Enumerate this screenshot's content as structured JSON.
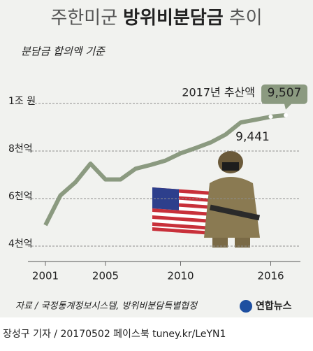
{
  "chart_data": {
    "type": "line",
    "title_parts": [
      "주한미군",
      "방위비분담금",
      "추이"
    ],
    "subtitle": "분담금 합의액 기준",
    "x": [
      2001,
      2002,
      2003,
      2004,
      2005,
      2006,
      2007,
      2008,
      2009,
      2010,
      2011,
      2012,
      2013,
      2014,
      2015,
      2016,
      2017
    ],
    "series": [
      {
        "color": "#8b9a80",
        "values": [
          4882,
          6132,
          6686,
          7469,
          6804,
          6804,
          7255,
          7415,
          7600,
          7904,
          8125,
          8361,
          8695,
          9200,
          9320,
          9441,
          9507
        ],
        "value_labels": [
          null,
          null,
          null,
          null,
          null,
          null,
          null,
          null,
          null,
          null,
          null,
          null,
          null,
          null,
          null,
          "9,441",
          "9,507"
        ]
      }
    ],
    "annotations": [
      {
        "text": "2017년 추산액",
        "x": 2017
      }
    ],
    "xlim": [
      2001,
      2017
    ],
    "xticks": [
      2001,
      2005,
      2010,
      2016
    ],
    "ylim": [
      4000,
      10000
    ],
    "yticks": [
      {
        "value": 4000,
        "label": "4천억"
      },
      {
        "value": 6000,
        "label": "6천억"
      },
      {
        "value": 8000,
        "label": "8천억"
      },
      {
        "value": 10000,
        "label": "1조 원"
      }
    ],
    "grid": true,
    "source": "자료 / 국정통계정보시스템, 방위비분담특별협정",
    "logo": "연합뉴스",
    "footer": "장성구 기자 / 20170502  페이스북 tuney.kr/LeYN1"
  }
}
